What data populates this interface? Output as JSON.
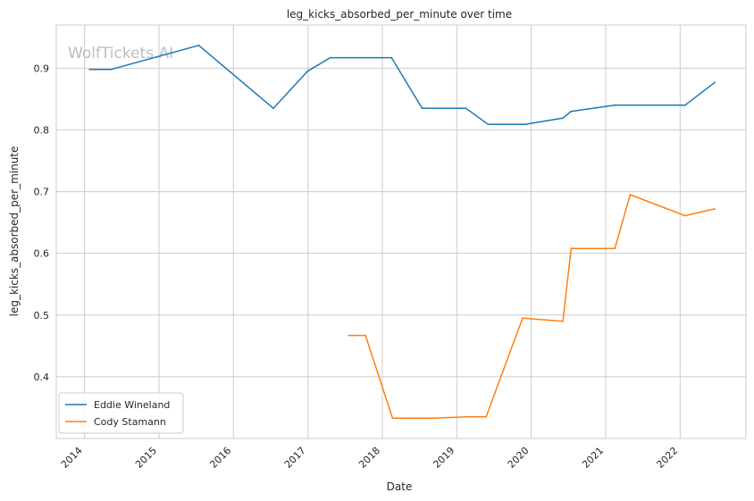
{
  "watermark": "WolfTickets.AI",
  "colors": {
    "grid": "#cccccc",
    "axes_edge": "#cccccc",
    "background": "#ffffff"
  },
  "chart_data": {
    "type": "line",
    "title": "leg_kicks_absorbed_per_minute over time",
    "xlabel": "Date",
    "ylabel": "leg_kicks_absorbed_per_minute",
    "x_ticks": [
      "2014",
      "2015",
      "2016",
      "2017",
      "2018",
      "2019",
      "2020",
      "2021",
      "2022"
    ],
    "y_ticks": [
      "0.4",
      "0.5",
      "0.6",
      "0.7",
      "0.8",
      "0.9"
    ],
    "xlim": [
      "2013-08-15",
      "2022-11-20"
    ],
    "ylim": [
      0.3,
      0.97
    ],
    "grid": true,
    "legend_position": "lower-left",
    "series": [
      {
        "name": "Eddie Wineland",
        "color": "#1f77b4",
        "points": [
          {
            "x": "2014-01-25",
            "y": 0.898
          },
          {
            "x": "2014-05-10",
            "y": 0.898
          },
          {
            "x": "2015-07-15",
            "y": 0.937
          },
          {
            "x": "2016-07-15",
            "y": 0.835
          },
          {
            "x": "2016-12-30",
            "y": 0.895
          },
          {
            "x": "2017-04-20",
            "y": 0.917
          },
          {
            "x": "2018-02-15",
            "y": 0.917
          },
          {
            "x": "2018-07-15",
            "y": 0.835
          },
          {
            "x": "2019-02-15",
            "y": 0.835
          },
          {
            "x": "2019-06-05",
            "y": 0.809
          },
          {
            "x": "2019-12-01",
            "y": 0.809
          },
          {
            "x": "2020-06-05",
            "y": 0.819
          },
          {
            "x": "2020-07-15",
            "y": 0.83
          },
          {
            "x": "2021-02-15",
            "y": 0.84
          },
          {
            "x": "2022-01-25",
            "y": 0.84
          },
          {
            "x": "2022-06-20",
            "y": 0.877
          }
        ]
      },
      {
        "name": "Cody Stamann",
        "color": "#ff7f0e",
        "points": [
          {
            "x": "2017-07-20",
            "y": 0.467
          },
          {
            "x": "2017-10-10",
            "y": 0.467
          },
          {
            "x": "2018-02-20",
            "y": 0.333
          },
          {
            "x": "2018-09-10",
            "y": 0.333
          },
          {
            "x": "2019-02-15",
            "y": 0.335
          },
          {
            "x": "2019-05-25",
            "y": 0.335
          },
          {
            "x": "2019-11-20",
            "y": 0.495
          },
          {
            "x": "2020-06-05",
            "y": 0.49
          },
          {
            "x": "2020-07-15",
            "y": 0.608
          },
          {
            "x": "2021-02-15",
            "y": 0.608
          },
          {
            "x": "2021-05-01",
            "y": 0.695
          },
          {
            "x": "2022-01-25",
            "y": 0.661
          },
          {
            "x": "2022-06-20",
            "y": 0.672
          }
        ]
      }
    ]
  }
}
